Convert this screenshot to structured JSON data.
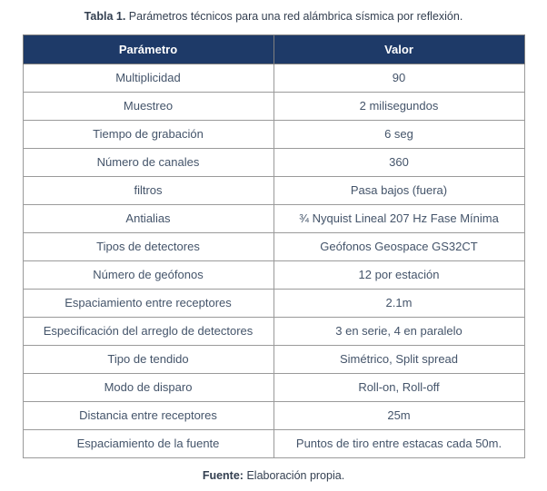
{
  "title": {
    "label": "Tabla 1.",
    "text": "Parámetros técnicos para una red alámbrica sísmica por reflexión."
  },
  "table": {
    "headers": [
      "Parámetro",
      "Valor"
    ],
    "rows": [
      [
        "Multiplicidad",
        "90"
      ],
      [
        "Muestreo",
        "2 milisegundos"
      ],
      [
        "Tiempo de grabación",
        "6 seg"
      ],
      [
        "Número de canales",
        "360"
      ],
      [
        "filtros",
        "Pasa bajos (fuera)"
      ],
      [
        "Antialias",
        "¾ Nyquist Lineal 207 Hz Fase Mínima"
      ],
      [
        "Tipos de detectores",
        "Geófonos Geospace GS32CT"
      ],
      [
        "Número de geófonos",
        "12 por estación"
      ],
      [
        "Espaciamiento entre receptores",
        "2.1m"
      ],
      [
        "Especificación del arreglo de detectores",
        "3 en serie, 4 en paralelo"
      ],
      [
        "Tipo de tendido",
        "Simétrico, Split spread"
      ],
      [
        "Modo de disparo",
        "Roll-on, Roll-off"
      ],
      [
        "Distancia entre receptores",
        "25m"
      ],
      [
        "Espaciamiento de la fuente",
        "Puntos de tiro entre estacas cada 50m."
      ]
    ]
  },
  "footer": {
    "label": "Fuente:",
    "text": "Elaboración propia."
  },
  "colors": {
    "header_bg": "#1e3a68",
    "header_text": "#ffffff",
    "body_text": "#44546a",
    "caption_text": "#333f50",
    "border": "#9a9a9a"
  }
}
